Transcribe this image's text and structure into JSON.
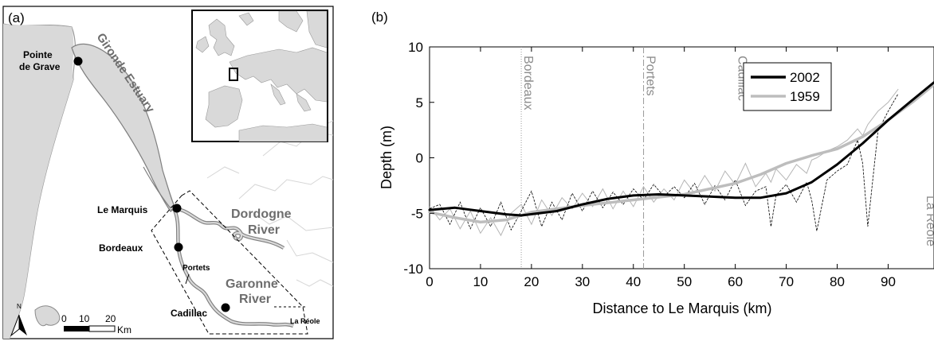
{
  "panel_a": {
    "label": "(a)",
    "places": {
      "pointe": [
        "Pointe",
        "de Grave"
      ],
      "le_marquis": "Le Marquis",
      "bordeaux": "Bordeaux",
      "portets": "Portets",
      "cadillac": "Cadillac",
      "la_reole": "La Réole"
    },
    "water_labels": {
      "gironde": "Gironde Estuary",
      "dordogne": [
        "Dordogne",
        "River"
      ],
      "garonne": [
        "Garonne",
        "River"
      ]
    },
    "north_arrow": "N",
    "scale": {
      "ticks": [
        "0",
        "10",
        "20"
      ],
      "unit": "Km"
    },
    "colors": {
      "water": "#d9d9d9",
      "river_outline": "#7f7f7f",
      "label": "#6d6d6d",
      "boundary": "#d6d6d6"
    }
  },
  "panel_b": {
    "label": "(b)",
    "chart_data": {
      "type": "line",
      "xlabel": "Distance to Le Marquis (km)",
      "ylabel": "Depth (m)",
      "xlim": [
        0,
        99
      ],
      "ylim": [
        -10,
        10
      ],
      "xticks": [
        "0",
        "10",
        "20",
        "30",
        "40",
        "50",
        "60",
        "70",
        "80",
        "90"
      ],
      "yticks": [
        "10",
        "5",
        "0",
        "-5",
        "-10"
      ],
      "legend": {
        "position": "top-right"
      },
      "grid": false,
      "series": [
        {
          "name": "2002",
          "color": "#000000",
          "x": [
            0,
            5,
            10,
            15,
            18,
            25,
            30,
            35,
            40,
            45,
            50,
            55,
            60,
            65,
            70,
            75,
            80,
            85,
            90,
            95,
            99
          ],
          "y": [
            -4.7,
            -4.5,
            -4.8,
            -5.1,
            -5.2,
            -4.8,
            -4.2,
            -3.7,
            -3.4,
            -3.3,
            -3.4,
            -3.5,
            -3.6,
            -3.6,
            -3.2,
            -2.2,
            -0.6,
            1.3,
            3.4,
            5.3,
            6.8
          ]
        },
        {
          "name": "1959",
          "color": "#bdbdbd",
          "x": [
            0,
            5,
            10,
            15,
            18,
            20,
            30,
            40,
            50,
            60,
            65,
            70,
            75,
            80,
            85,
            90,
            95,
            99
          ],
          "y": [
            -4.9,
            -5.4,
            -5.8,
            -5.6,
            -5.2,
            -4.9,
            -4.3,
            -3.8,
            -3.3,
            -2.3,
            -1.5,
            -0.5,
            0.2,
            0.8,
            1.9,
            3.4,
            5.1,
            6.6
          ]
        }
      ],
      "raw_profiles": {
        "color_2002": "#000000",
        "color_1959": "#b5b5b5",
        "x": [
          0,
          2,
          4,
          6,
          8,
          10,
          12,
          14,
          16,
          18,
          20,
          22,
          24,
          26,
          28,
          30,
          32,
          34,
          36,
          38,
          40,
          42,
          44,
          46,
          48,
          50,
          52,
          54,
          56,
          58,
          60,
          62,
          64,
          66,
          67,
          68,
          70,
          72,
          74,
          75,
          76,
          78,
          80,
          82,
          84,
          85,
          86,
          88,
          90,
          92
        ],
        "y_2002": [
          -4.6,
          -4.2,
          -6,
          -4,
          -6.4,
          -4.5,
          -6.2,
          -4,
          -6.5,
          -4.8,
          -3,
          -6.2,
          -4,
          -5.6,
          -3.2,
          -4.8,
          -3,
          -4.5,
          -3.1,
          -4.2,
          -2.8,
          -3.8,
          -2.4,
          -3.5,
          -2.6,
          -3.6,
          -2.3,
          -4.2,
          -2.5,
          -3.8,
          -2,
          -4.3,
          -3,
          -2.6,
          -6.2,
          -3.4,
          -2.4,
          -4,
          -2.2,
          -3.8,
          -6.6,
          -2,
          -1.2,
          -0.6,
          1.6,
          -0.5,
          -6.2,
          2.4,
          4.2,
          5.8
        ],
        "y_1959": [
          -4.4,
          -5.6,
          -4.6,
          -6.4,
          -4.8,
          -6.8,
          -5.4,
          -7,
          -5,
          -4.2,
          -6,
          -3.8,
          -5.2,
          -3.6,
          -4.6,
          -3.2,
          -4.4,
          -2.8,
          -4.6,
          -3,
          -4.4,
          -2.6,
          -4,
          -2.8,
          -3.8,
          -2,
          -3.2,
          -1.6,
          -3,
          -1.2,
          -2.4,
          -0.5,
          -2.6,
          -1.4,
          -2.2,
          -1,
          -2,
          -0.6,
          -1.4,
          -0.2,
          0,
          0.6,
          1,
          1.6,
          2.6,
          2,
          3,
          4.2,
          5,
          6.2
        ]
      },
      "landmarks": [
        {
          "label": "Bordeaux",
          "x": 18,
          "line": "dotted"
        },
        {
          "label": "Portets",
          "x": 42,
          "line": "dashdot"
        },
        {
          "label": "Cadillac",
          "x": 60,
          "line": "none"
        },
        {
          "label": "La Réole",
          "x": 97,
          "line": "none"
        }
      ]
    }
  }
}
